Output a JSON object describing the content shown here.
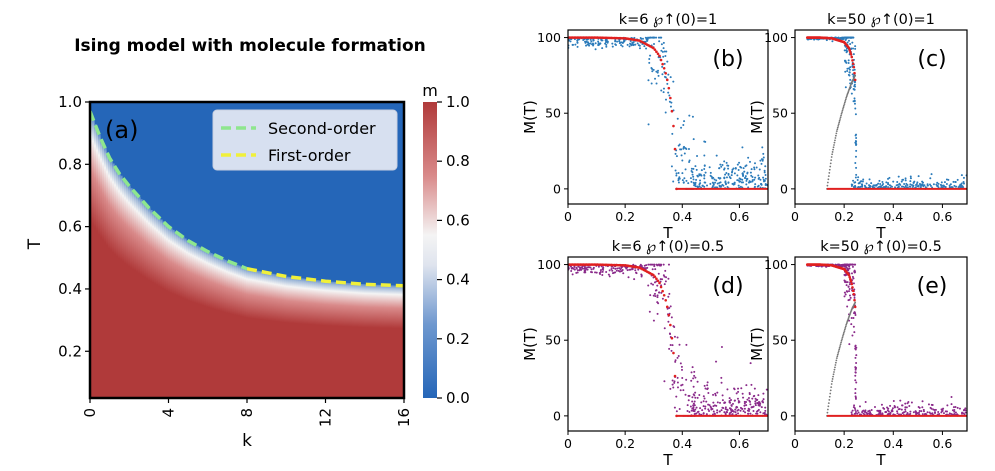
{
  "colors": {
    "ordered": "#b03a3a",
    "disordered": "#2566b8",
    "middle": "#f4f4f4",
    "second_order": "#8ee68e",
    "first_order": "#f0f03a",
    "red_curve": "#e02020",
    "blue_scatter": "#2b7bba",
    "purple_scatter": "#8a2a8a",
    "gray_points": "#777777"
  },
  "chart_data": [
    {
      "id": "a",
      "type": "heatmap",
      "title": "Ising model with molecule formation",
      "panel_label": "(a)",
      "xlabel": "k",
      "ylabel": "T",
      "xlim": [
        0,
        16
      ],
      "ylim": [
        0.05,
        1.0
      ],
      "xticks": [
        "0",
        "4",
        "8",
        "12",
        "16"
      ],
      "yticks": [
        "0.2",
        "0.4",
        "0.6",
        "0.8",
        "1.0"
      ],
      "colorbar": {
        "label": "m",
        "range": [
          0.0,
          1.0
        ],
        "ticks": [
          "0.0",
          "0.2",
          "0.4",
          "0.6",
          "0.8",
          "1.0"
        ]
      },
      "legend_position": "top-right",
      "series": [
        {
          "name": "Second-order",
          "style": "dashed",
          "color": "#8ee68e",
          "x": [
            0,
            0.5,
            1,
            1.5,
            2,
            3,
            4,
            5,
            6,
            7,
            8
          ],
          "y": [
            0.97,
            0.89,
            0.82,
            0.77,
            0.73,
            0.66,
            0.6,
            0.555,
            0.52,
            0.49,
            0.465
          ]
        },
        {
          "name": "First-order",
          "style": "dashed",
          "color": "#f0f03a",
          "x": [
            8,
            10,
            12,
            14,
            16
          ],
          "y": [
            0.465,
            0.44,
            0.425,
            0.415,
            0.41
          ]
        }
      ]
    },
    {
      "id": "b",
      "type": "scatter",
      "title": "k=6 ℘↑(0)=1",
      "panel_label": "(b)",
      "xlabel": "T",
      "ylabel": "M(T)",
      "xlim": [
        0,
        0.7
      ],
      "ylim": [
        -10,
        105
      ],
      "xticks": [
        "0",
        "0.2",
        "0.4",
        "0.6"
      ],
      "yticks": [
        "0",
        "50",
        "100"
      ],
      "curve": {
        "x": [
          0,
          0.1,
          0.2,
          0.25,
          0.3,
          0.32,
          0.34,
          0.35,
          0.36,
          0.37,
          0.375,
          0.38
        ],
        "y": [
          100,
          100,
          99.5,
          98,
          93,
          88,
          78,
          70,
          58,
          40,
          25,
          0
        ]
      },
      "zero_line_from": 0.38,
      "scatter": {
        "color": "blue",
        "upper_start": 0.0,
        "transition_start": 0.28,
        "transition_end": 0.45,
        "tail_spread": 14
      }
    },
    {
      "id": "c",
      "type": "scatter",
      "title": "k=50 ℘↑(0)=1",
      "panel_label": "(c)",
      "xlabel": "T",
      "ylabel": "M(T)",
      "xlim": [
        0,
        0.7
      ],
      "ylim": [
        -10,
        105
      ],
      "xticks": [
        "0",
        "0.2",
        "0.4",
        "0.6"
      ],
      "yticks": [
        "0",
        "50",
        "100"
      ],
      "curve": {
        "x": [
          0.05,
          0.1,
          0.15,
          0.2,
          0.22,
          0.23,
          0.24,
          0.245
        ],
        "y": [
          100,
          100,
          99.5,
          97,
          93,
          88,
          80,
          72
        ]
      },
      "zero_line_from": 0.13,
      "gray_branch": {
        "x": [
          0.13,
          0.15,
          0.17,
          0.19,
          0.21,
          0.23,
          0.245
        ],
        "y": [
          0,
          22,
          38,
          50,
          61,
          70,
          75
        ]
      },
      "scatter": {
        "color": "blue",
        "upper_start": 0.05,
        "transition_start": 0.2,
        "transition_end": 0.25,
        "tail_spread": 5
      }
    },
    {
      "id": "d",
      "type": "scatter",
      "title": "k=6 ℘↑(0)=0.5",
      "panel_label": "(d)",
      "xlabel": "T",
      "ylabel": "M(T)",
      "xlim": [
        0,
        0.7
      ],
      "ylim": [
        -10,
        105
      ],
      "xticks": [
        "0",
        "0.2",
        "0.4",
        "0.6"
      ],
      "yticks": [
        "0",
        "50",
        "100"
      ],
      "curve": {
        "x": [
          0,
          0.1,
          0.2,
          0.25,
          0.3,
          0.32,
          0.34,
          0.35,
          0.36,
          0.37,
          0.375,
          0.38
        ],
        "y": [
          100,
          100,
          99.5,
          98,
          93,
          88,
          78,
          70,
          58,
          40,
          25,
          0
        ]
      },
      "zero_line_from": 0.38,
      "scatter": {
        "color": "purple",
        "upper_start": 0.0,
        "transition_start": 0.28,
        "transition_end": 0.45,
        "tail_spread": 14
      }
    },
    {
      "id": "e",
      "type": "scatter",
      "title": "k=50 ℘↑(0)=0.5",
      "panel_label": "(e)",
      "xlabel": "T",
      "ylabel": "M(T)",
      "xlim": [
        0,
        0.7
      ],
      "ylim": [
        -10,
        105
      ],
      "xticks": [
        "0",
        "0.2",
        "0.4",
        "0.6"
      ],
      "yticks": [
        "0",
        "50",
        "100"
      ],
      "curve": {
        "x": [
          0.05,
          0.1,
          0.15,
          0.2,
          0.22,
          0.23,
          0.24,
          0.245
        ],
        "y": [
          100,
          100,
          99.5,
          97,
          93,
          88,
          80,
          72
        ]
      },
      "zero_line_from": 0.13,
      "gray_branch": {
        "x": [
          0.13,
          0.15,
          0.17,
          0.19,
          0.21,
          0.23,
          0.245
        ],
        "y": [
          0,
          22,
          38,
          50,
          61,
          70,
          75
        ]
      },
      "scatter": {
        "color": "purple",
        "upper_start": 0.05,
        "transition_start": 0.2,
        "transition_end": 0.25,
        "tail_spread": 5
      }
    }
  ]
}
